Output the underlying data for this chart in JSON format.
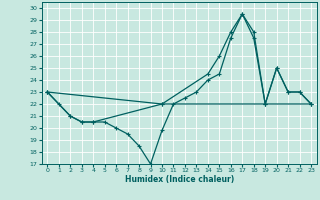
{
  "xlabel": "Humidex (Indice chaleur)",
  "bg_color": "#c8e8e0",
  "grid_color": "#d0e8e0",
  "line_color": "#006060",
  "xlim": [
    -0.5,
    23.5
  ],
  "ylim": [
    17,
    30.5
  ],
  "xticks": [
    0,
    1,
    2,
    3,
    4,
    5,
    6,
    7,
    8,
    9,
    10,
    11,
    12,
    13,
    14,
    15,
    16,
    17,
    18,
    19,
    20,
    21,
    22,
    23
  ],
  "yticks": [
    17,
    18,
    19,
    20,
    21,
    22,
    23,
    24,
    25,
    26,
    27,
    28,
    29,
    30
  ],
  "series": [
    {
      "x": [
        0,
        1,
        2,
        3,
        4,
        5,
        6,
        7,
        8,
        9,
        10,
        11,
        12,
        13,
        14,
        15,
        16,
        17,
        18,
        19,
        20,
        21,
        22,
        23
      ],
      "y": [
        23,
        22,
        21,
        20.5,
        20.5,
        20.5,
        20,
        19.5,
        18.5,
        17,
        19.8,
        22,
        22.5,
        23,
        24,
        24.5,
        27.5,
        29.5,
        28,
        22,
        25,
        23,
        23,
        22
      ]
    },
    {
      "x": [
        0,
        2,
        3,
        4,
        10,
        14,
        15,
        16,
        17,
        18,
        19,
        20,
        21,
        22,
        23
      ],
      "y": [
        23,
        21,
        20.5,
        20.5,
        22,
        24.5,
        26,
        28,
        29.5,
        27.5,
        22,
        25,
        23,
        23,
        22
      ]
    },
    {
      "x": [
        0,
        10,
        19,
        23
      ],
      "y": [
        23,
        22,
        22,
        22
      ]
    }
  ]
}
